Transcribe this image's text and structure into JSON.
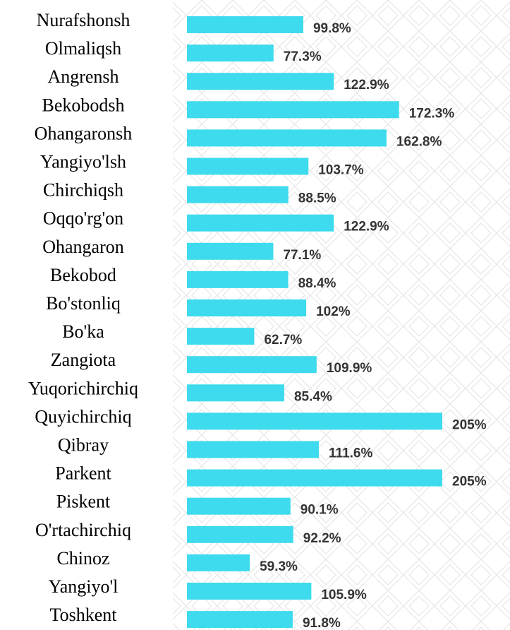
{
  "chart_data": {
    "type": "bar",
    "orientation": "horizontal",
    "color": "#3ddbed",
    "categories": [
      "Nurafshonsh",
      "Olmaliqsh",
      "Angrensh",
      "Bekobodsh",
      "Ohangaronsh",
      "Yangiyo'lsh",
      "Chirchiqsh",
      "Oqqo'rg'on",
      "Ohangaron",
      "Bekobod",
      "Bo'stonliq",
      "Bo'ka",
      "Zangiota",
      "Yuqorichirchiq",
      "Quyichirchiq",
      "Qibray",
      "Parkent",
      "Piskent",
      "O'rtachirchiq",
      "Chinoz",
      "Yangiyo'l",
      "Toshkent"
    ],
    "values": [
      99.8,
      77.3,
      122.9,
      172.3,
      162.8,
      103.7,
      88.5,
      122.9,
      77.1,
      88.4,
      102,
      62.7,
      109.9,
      85.4,
      205,
      111.6,
      205,
      90.1,
      92.2,
      59.3,
      105.9,
      91.8
    ],
    "value_labels": [
      "99.8%",
      "77.3%",
      "122.9%",
      "172.3%",
      "162.8%",
      "103.7%",
      "88.5%",
      "122.9%",
      "77.1%",
      "88.4%",
      "102%",
      "62.7%",
      "109.9%",
      "85.4%",
      "205%",
      "111.6%",
      "205%",
      "90.1%",
      "92.2%",
      "59.3%",
      "105.9%",
      "91.8%"
    ]
  }
}
